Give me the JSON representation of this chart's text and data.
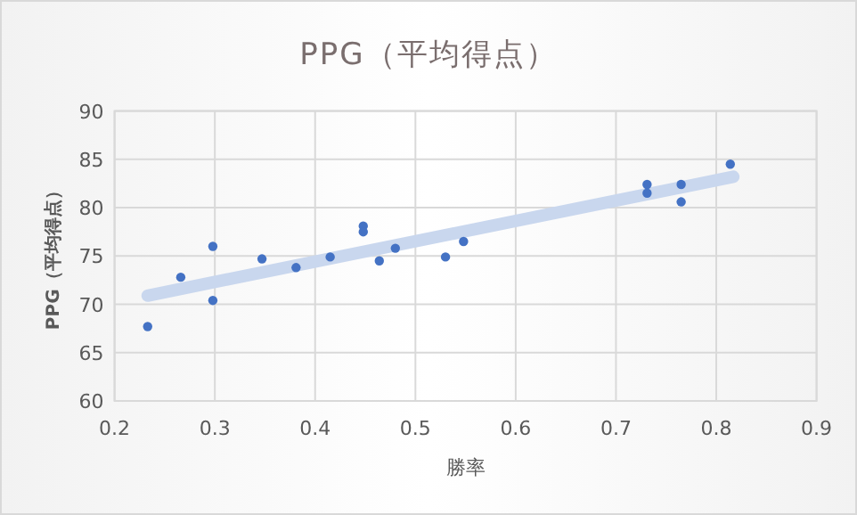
{
  "chart_data": {
    "type": "scatter",
    "title": "PPG（平均得点）",
    "xlabel": "勝率",
    "ylabel": "PPG（平均得点）",
    "series": [
      {
        "type": "scatter",
        "color": "#4472c4",
        "marker": "circle",
        "x": [
          0.233,
          0.266,
          0.298,
          0.298,
          0.347,
          0.381,
          0.415,
          0.448,
          0.448,
          0.464,
          0.48,
          0.53,
          0.548,
          0.731,
          0.731,
          0.765,
          0.765,
          0.814
        ],
        "values": [
          67.7,
          72.8,
          76.0,
          70.4,
          74.7,
          73.8,
          74.9,
          78.1,
          77.5,
          74.5,
          75.8,
          74.9,
          76.5,
          82.4,
          81.5,
          82.4,
          80.6,
          84.5
        ]
      },
      {
        "type": "line",
        "color": "#c9d7ee",
        "marker": "none",
        "x": [
          0.233,
          0.817
        ],
        "values": [
          70.9,
          83.2
        ]
      }
    ],
    "xlim": [
      0.2,
      0.9
    ],
    "ylim": [
      60,
      90
    ],
    "xticks": [
      0.2,
      0.3,
      0.4,
      0.5,
      0.6,
      0.7,
      0.8,
      0.9
    ],
    "yticks": [
      60,
      65,
      70,
      75,
      80,
      85,
      90
    ],
    "grid": true,
    "line_style": "solid"
  }
}
